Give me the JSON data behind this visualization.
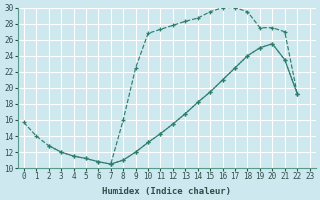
{
  "xlabel": "Humidex (Indice chaleur)",
  "bg_color": "#cde8ef",
  "grid_color": "#ffffff",
  "line_color": "#2e7d6e",
  "xlim": [
    -0.5,
    23.5
  ],
  "ylim": [
    10,
    30
  ],
  "xticks": [
    0,
    1,
    2,
    3,
    4,
    5,
    6,
    7,
    8,
    9,
    10,
    11,
    12,
    13,
    14,
    15,
    16,
    17,
    18,
    19,
    20,
    21,
    22,
    23
  ],
  "yticks": [
    10,
    12,
    14,
    16,
    18,
    20,
    22,
    24,
    26,
    28,
    30
  ],
  "line1_x": [
    0,
    1,
    2,
    3,
    4,
    5,
    6,
    7,
    8,
    9,
    10,
    11,
    12,
    13,
    14,
    15,
    16,
    17,
    18,
    19,
    20,
    21,
    22
  ],
  "line1_y": [
    15.7,
    14.0,
    12.8,
    12.0,
    11.5,
    11.2,
    10.8,
    10.5,
    16.0,
    22.5,
    26.8,
    27.3,
    27.8,
    28.3,
    28.7,
    29.5,
    30.0,
    30.0,
    29.5,
    27.5,
    27.5,
    27.0,
    19.3
  ],
  "line2_x": [
    2,
    3,
    4,
    5,
    6,
    7,
    8,
    9,
    10,
    11,
    12,
    13,
    14,
    15,
    16,
    17,
    18,
    19,
    20,
    21,
    22
  ],
  "line2_y": [
    12.8,
    12.0,
    11.5,
    11.2,
    10.8,
    10.5,
    11.0,
    12.0,
    13.2,
    14.3,
    15.5,
    16.8,
    18.2,
    19.5,
    21.0,
    22.5,
    24.0,
    25.0,
    25.5,
    23.5,
    19.3
  ],
  "line3_x": [
    7,
    8,
    9,
    10,
    11,
    12,
    13,
    14,
    15,
    16,
    17,
    18,
    19,
    20,
    21,
    22
  ],
  "line3_y": [
    10.5,
    11.0,
    12.0,
    13.2,
    14.3,
    15.5,
    16.8,
    18.2,
    19.5,
    21.0,
    22.5,
    24.0,
    25.0,
    25.5,
    23.5,
    19.3
  ]
}
